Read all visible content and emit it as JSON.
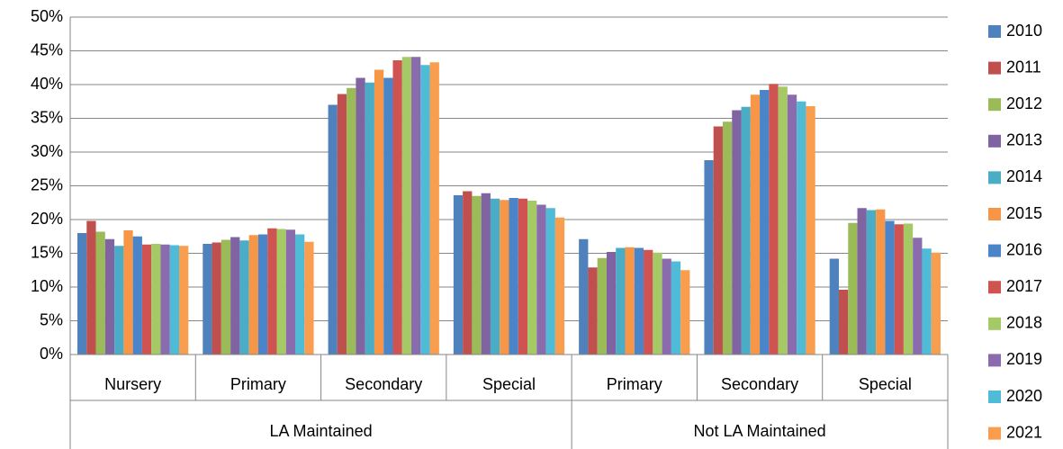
{
  "chart_data": {
    "type": "bar",
    "groups": [
      {
        "name": "LA Maintained",
        "categories": [
          "Nursery",
          "Primary",
          "Secondary",
          "Special"
        ]
      },
      {
        "name": "Not LA Maintained",
        "categories": [
          "Primary",
          "Secondary",
          "Special"
        ]
      }
    ],
    "series": [
      {
        "name": "2010",
        "color": "#4f81bd",
        "values": [
          18.0,
          16.4,
          37.0,
          23.6,
          17.1,
          28.8,
          14.2
        ]
      },
      {
        "name": "2011",
        "color": "#c0504d",
        "values": [
          19.8,
          16.6,
          38.6,
          24.2,
          12.9,
          33.8,
          9.6
        ]
      },
      {
        "name": "2012",
        "color": "#9bbb59",
        "values": [
          18.2,
          17.0,
          39.5,
          23.5,
          14.3,
          34.5,
          19.5
        ]
      },
      {
        "name": "2013",
        "color": "#8064a2",
        "values": [
          17.1,
          17.4,
          41.0,
          23.9,
          15.2,
          36.2,
          21.7
        ]
      },
      {
        "name": "2014",
        "color": "#4bacc6",
        "values": [
          16.1,
          16.9,
          40.3,
          23.1,
          15.8,
          36.7,
          21.4
        ]
      },
      {
        "name": "2015",
        "color": "#f79646",
        "values": [
          18.4,
          17.7,
          42.2,
          22.9,
          15.9,
          38.5,
          21.5
        ]
      },
      {
        "name": "2016",
        "color": "#4a84c9",
        "values": [
          17.5,
          17.8,
          41.0,
          23.2,
          15.8,
          39.2,
          19.8
        ]
      },
      {
        "name": "2017",
        "color": "#cf5451",
        "values": [
          16.3,
          18.7,
          43.6,
          23.1,
          15.5,
          40.1,
          19.3
        ]
      },
      {
        "name": "2018",
        "color": "#a5c965",
        "values": [
          16.4,
          18.6,
          44.1,
          22.8,
          15.1,
          39.7,
          19.4
        ]
      },
      {
        "name": "2019",
        "color": "#8a6cae",
        "values": [
          16.3,
          18.5,
          44.1,
          22.2,
          14.2,
          38.5,
          17.3
        ]
      },
      {
        "name": "2020",
        "color": "#4fbbd6",
        "values": [
          16.2,
          17.8,
          42.9,
          21.7,
          13.8,
          37.5,
          15.7
        ]
      },
      {
        "name": "2021",
        "color": "#f99d4e",
        "values": [
          16.1,
          16.7,
          43.3,
          20.3,
          12.5,
          36.8,
          15.1
        ]
      }
    ],
    "ylim": [
      0,
      50
    ],
    "yticks": [
      {
        "value": 0,
        "label": "0%"
      },
      {
        "value": 5,
        "label": "5%"
      },
      {
        "value": 10,
        "label": "10%"
      },
      {
        "value": 15,
        "label": "15%"
      },
      {
        "value": 20,
        "label": "20%"
      },
      {
        "value": 25,
        "label": "25%"
      },
      {
        "value": 30,
        "label": "30%"
      },
      {
        "value": 35,
        "label": "35%"
      },
      {
        "value": 40,
        "label": "40%"
      },
      {
        "value": 45,
        "label": "45%"
      },
      {
        "value": 50,
        "label": "50%"
      }
    ],
    "grid": true,
    "legend": "right"
  }
}
